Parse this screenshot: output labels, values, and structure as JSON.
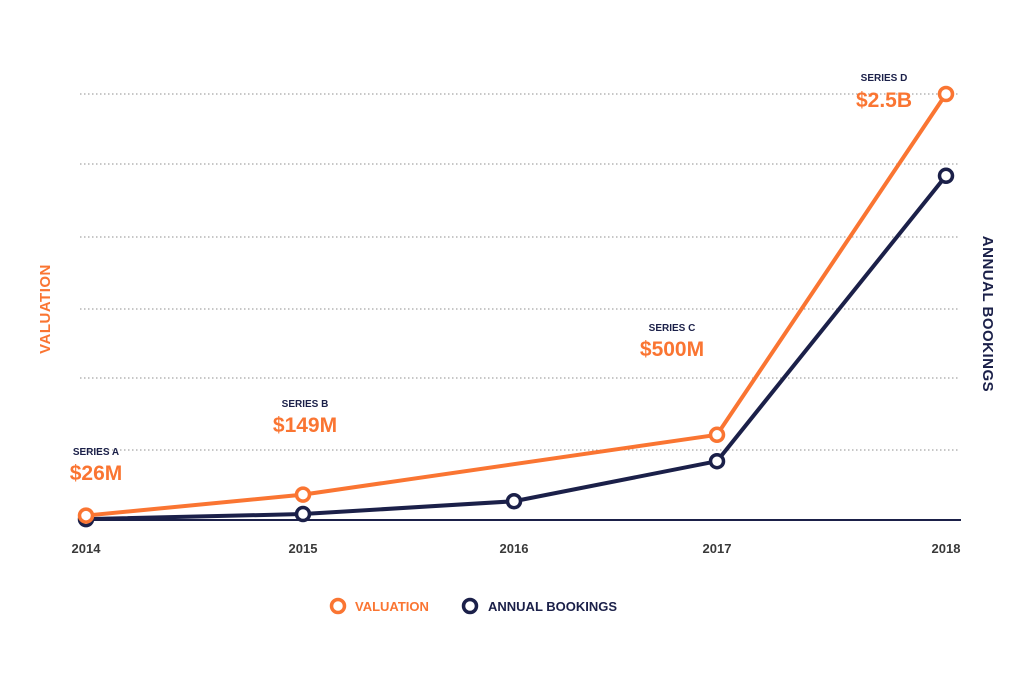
{
  "colors": {
    "valuation": "#fa7532",
    "bookings": "#1b2049",
    "grid": "#8f8f8f",
    "ticks": "#3a3a3a"
  },
  "chart_data": {
    "type": "line",
    "x": [
      2014,
      2015,
      2016,
      2017,
      2018
    ],
    "xticks": [
      "2014",
      "2015",
      "2016",
      "2017",
      "2018"
    ],
    "left_axis_title": "VALUATION",
    "right_axis_title": "ANNUAL BOOKINGS",
    "ylim": [
      0,
      2.5
    ],
    "grid": true,
    "legend_position": "bottom-center",
    "series": [
      {
        "name": "VALUATION",
        "color": "#fa7532",
        "values": [
          0.026,
          0.149,
          null,
          0.5,
          2.5
        ]
      },
      {
        "name": "ANNUAL BOOKINGS",
        "color": "#1b2049",
        "values": [
          0.005,
          0.035,
          0.11,
          0.345,
          2.02
        ]
      }
    ],
    "annotations": [
      {
        "series": 0,
        "index": 0,
        "label": "SERIES A",
        "value_label": "$26M"
      },
      {
        "series": 0,
        "index": 1,
        "label": "SERIES B",
        "value_label": "$149M"
      },
      {
        "series": 0,
        "index": 3,
        "label": "SERIES C",
        "value_label": "$500M"
      },
      {
        "series": 0,
        "index": 4,
        "label": "SERIES D",
        "value_label": "$2.5B"
      }
    ]
  }
}
